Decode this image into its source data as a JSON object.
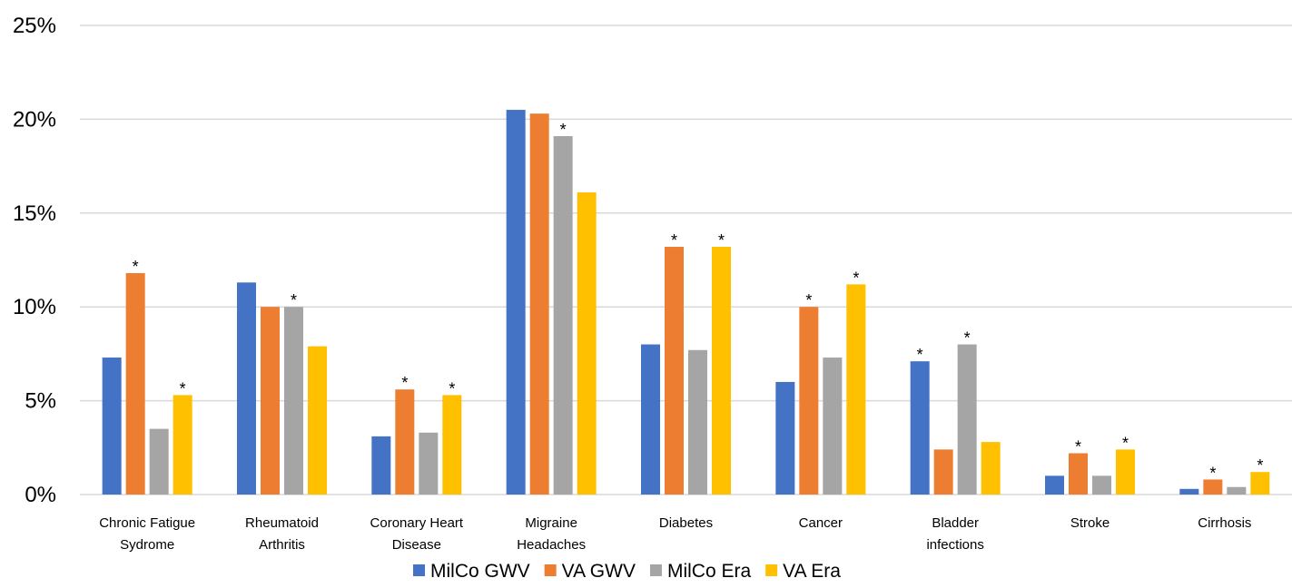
{
  "chart_data": {
    "type": "bar",
    "title": "",
    "xlabel": "",
    "ylabel": "",
    "ylim": [
      0,
      25
    ],
    "y_tick_values": [
      0,
      5,
      10,
      15,
      20,
      25
    ],
    "y_tick_labels": [
      "0%",
      "5%",
      "10%",
      "15%",
      "20%",
      "25%"
    ],
    "grid": true,
    "legend_position": "bottom",
    "categories": [
      [
        "Chronic Fatigue",
        "Sydrome"
      ],
      [
        "Rheumatoid",
        "Arthritis"
      ],
      [
        "Coronary Heart",
        "Disease"
      ],
      [
        "Migraine",
        "Headaches"
      ],
      [
        "Diabetes"
      ],
      [
        "Cancer"
      ],
      [
        "Bladder",
        "infections"
      ],
      [
        "Stroke"
      ],
      [
        "Cirrhosis"
      ]
    ],
    "series": [
      {
        "name": "MilCo GWV",
        "color": "#4472C4",
        "values": [
          7.3,
          11.3,
          3.1,
          20.5,
          8.0,
          6.0,
          7.1,
          1.0,
          0.3
        ]
      },
      {
        "name": "VA GWV",
        "color": "#ED7D31",
        "values": [
          11.8,
          10.0,
          5.6,
          20.3,
          13.2,
          10.0,
          2.4,
          2.2,
          0.8
        ]
      },
      {
        "name": "MilCo Era",
        "color": "#A5A5A5",
        "values": [
          3.5,
          10.0,
          3.3,
          19.1,
          7.7,
          7.3,
          8.0,
          1.0,
          0.4
        ]
      },
      {
        "name": "VA Era",
        "color": "#FFC000",
        "values": [
          5.3,
          7.9,
          5.3,
          16.1,
          13.2,
          11.2,
          2.8,
          2.4,
          1.2
        ]
      }
    ],
    "significance_marker": "*",
    "significance": [
      [
        false,
        true,
        false,
        true
      ],
      [
        false,
        false,
        true,
        false
      ],
      [
        false,
        true,
        false,
        true
      ],
      [
        false,
        false,
        true,
        false
      ],
      [
        false,
        true,
        false,
        true
      ],
      [
        false,
        true,
        false,
        true
      ],
      [
        true,
        false,
        true,
        false
      ],
      [
        false,
        true,
        false,
        true
      ],
      [
        false,
        true,
        false,
        true
      ]
    ]
  }
}
